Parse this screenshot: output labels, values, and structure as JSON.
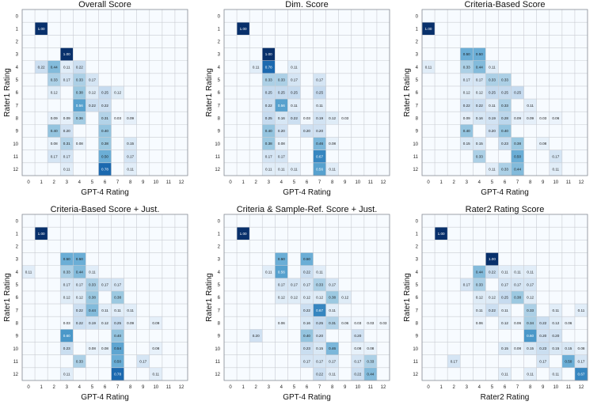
{
  "chart_data": [
    {
      "type": "heatmap",
      "title": "Overall Score",
      "xlabel": "GPT-4 Rating",
      "ylabel": "Rater1 Rating",
      "x_ticks": [
        0,
        1,
        2,
        3,
        4,
        5,
        6,
        7,
        8,
        9,
        10,
        11,
        12
      ],
      "y_ticks": [
        0,
        1,
        2,
        3,
        4,
        5,
        6,
        7,
        8,
        9,
        10,
        11,
        12
      ],
      "cells": [
        [
          1,
          1,
          1.0
        ],
        [
          3,
          3,
          1.0
        ],
        [
          4,
          1,
          0.22
        ],
        [
          4,
          2,
          0.44
        ],
        [
          4,
          3,
          0.11
        ],
        [
          4,
          4,
          0.22
        ],
        [
          5,
          2,
          0.33
        ],
        [
          5,
          3,
          0.17
        ],
        [
          5,
          4,
          0.33
        ],
        [
          5,
          5,
          0.17
        ],
        [
          6,
          2,
          0.12
        ],
        [
          6,
          4,
          0.38
        ],
        [
          6,
          5,
          0.12
        ],
        [
          6,
          6,
          0.25
        ],
        [
          6,
          7,
          0.12
        ],
        [
          7,
          4,
          0.56
        ],
        [
          7,
          5,
          0.22
        ],
        [
          7,
          6,
          0.22
        ],
        [
          8,
          2,
          0.09
        ],
        [
          8,
          3,
          0.09
        ],
        [
          8,
          4,
          0.36
        ],
        [
          8,
          6,
          0.31
        ],
        [
          8,
          7,
          0.03
        ],
        [
          8,
          8,
          0.09
        ],
        [
          9,
          2,
          0.4
        ],
        [
          9,
          3,
          0.2
        ],
        [
          9,
          6,
          0.4
        ],
        [
          10,
          2,
          0.08
        ],
        [
          10,
          3,
          0.31
        ],
        [
          10,
          4,
          0.08
        ],
        [
          10,
          6,
          0.38
        ],
        [
          10,
          8,
          0.15
        ],
        [
          11,
          2,
          0.17
        ],
        [
          11,
          3,
          0.17
        ],
        [
          11,
          6,
          0.5
        ],
        [
          11,
          8,
          0.17
        ],
        [
          12,
          3,
          0.11
        ],
        [
          12,
          6,
          0.78
        ],
        [
          12,
          8,
          0.11
        ]
      ]
    },
    {
      "type": "heatmap",
      "title": "Dim. Score",
      "xlabel": "GPT-4 Rating",
      "ylabel": "Rater1 Rating",
      "x_ticks": [
        0,
        1,
        2,
        3,
        4,
        5,
        6,
        7,
        8,
        9,
        10,
        11,
        12
      ],
      "y_ticks": [
        0,
        1,
        2,
        3,
        4,
        5,
        6,
        7,
        8,
        9,
        10,
        11,
        12
      ],
      "cells": [
        [
          1,
          1,
          1.0
        ],
        [
          3,
          3,
          1.0
        ],
        [
          4,
          2,
          0.11
        ],
        [
          4,
          3,
          0.78
        ],
        [
          4,
          5,
          0.11
        ],
        [
          5,
          3,
          0.33
        ],
        [
          5,
          4,
          0.33
        ],
        [
          5,
          5,
          0.17
        ],
        [
          5,
          7,
          0.17
        ],
        [
          6,
          3,
          0.25
        ],
        [
          6,
          4,
          0.25
        ],
        [
          6,
          5,
          0.25
        ],
        [
          6,
          7,
          0.25
        ],
        [
          7,
          3,
          0.22
        ],
        [
          7,
          4,
          0.56
        ],
        [
          7,
          5,
          0.11
        ],
        [
          7,
          7,
          0.11
        ],
        [
          8,
          3,
          0.25
        ],
        [
          8,
          4,
          0.16
        ],
        [
          8,
          5,
          0.22
        ],
        [
          8,
          6,
          0.03
        ],
        [
          8,
          7,
          0.19
        ],
        [
          8,
          8,
          0.12
        ],
        [
          8,
          9,
          0.03
        ],
        [
          9,
          3,
          0.4
        ],
        [
          9,
          4,
          0.2
        ],
        [
          9,
          6,
          0.2
        ],
        [
          9,
          7,
          0.2
        ],
        [
          10,
          3,
          0.38
        ],
        [
          10,
          4,
          0.08
        ],
        [
          10,
          7,
          0.46
        ],
        [
          10,
          8,
          0.08
        ],
        [
          11,
          3,
          0.17
        ],
        [
          11,
          4,
          0.17
        ],
        [
          11,
          7,
          0.67
        ],
        [
          12,
          3,
          0.11
        ],
        [
          12,
          4,
          0.11
        ],
        [
          12,
          5,
          0.11
        ],
        [
          12,
          7,
          0.56
        ],
        [
          12,
          8,
          0.11
        ]
      ]
    },
    {
      "type": "heatmap",
      "title": "Criteria-Based Score",
      "xlabel": "GPT-4 Rating",
      "ylabel": "Rater1 Rating",
      "x_ticks": [
        0,
        1,
        2,
        3,
        4,
        5,
        6,
        7,
        8,
        9,
        10,
        11,
        12
      ],
      "y_ticks": [
        0,
        1,
        2,
        3,
        4,
        5,
        6,
        7,
        8,
        9,
        10,
        11,
        12
      ],
      "cells": [
        [
          1,
          0,
          1.0
        ],
        [
          3,
          3,
          0.5
        ],
        [
          3,
          4,
          0.5
        ],
        [
          4,
          0,
          0.11
        ],
        [
          4,
          3,
          0.33
        ],
        [
          4,
          4,
          0.44
        ],
        [
          4,
          5,
          0.11
        ],
        [
          5,
          3,
          0.17
        ],
        [
          5,
          4,
          0.17
        ],
        [
          5,
          5,
          0.33
        ],
        [
          5,
          6,
          0.33
        ],
        [
          6,
          3,
          0.12
        ],
        [
          6,
          4,
          0.12
        ],
        [
          6,
          5,
          0.25
        ],
        [
          6,
          6,
          0.25
        ],
        [
          6,
          7,
          0.25
        ],
        [
          7,
          3,
          0.22
        ],
        [
          7,
          4,
          0.22
        ],
        [
          7,
          5,
          0.11
        ],
        [
          7,
          6,
          0.33
        ],
        [
          7,
          8,
          0.11
        ],
        [
          8,
          3,
          0.09
        ],
        [
          8,
          4,
          0.16
        ],
        [
          8,
          5,
          0.19
        ],
        [
          8,
          6,
          0.28
        ],
        [
          8,
          7,
          0.09
        ],
        [
          8,
          8,
          0.09
        ],
        [
          8,
          9,
          0.03
        ],
        [
          8,
          10,
          0.06
        ],
        [
          9,
          3,
          0.4
        ],
        [
          9,
          5,
          0.2
        ],
        [
          9,
          6,
          0.4
        ],
        [
          10,
          3,
          0.15
        ],
        [
          10,
          4,
          0.15
        ],
        [
          10,
          6,
          0.23
        ],
        [
          10,
          7,
          0.38
        ],
        [
          10,
          9,
          0.08
        ],
        [
          11,
          4,
          0.33
        ],
        [
          11,
          7,
          0.5
        ],
        [
          11,
          10,
          0.17
        ],
        [
          12,
          5,
          0.11
        ],
        [
          12,
          6,
          0.33
        ],
        [
          12,
          7,
          0.44
        ],
        [
          12,
          10,
          0.11
        ]
      ]
    },
    {
      "type": "heatmap",
      "title": "Criteria-Based Score + Just.",
      "xlabel": "GPT-4 Rating",
      "ylabel": "Rater1 Rating",
      "x_ticks": [
        0,
        1,
        2,
        3,
        4,
        5,
        6,
        7,
        8,
        9,
        10,
        11,
        12
      ],
      "y_ticks": [
        0,
        1,
        2,
        3,
        4,
        5,
        6,
        7,
        8,
        9,
        10,
        11,
        12
      ],
      "cells": [
        [
          1,
          1,
          1.0
        ],
        [
          3,
          3,
          0.5
        ],
        [
          3,
          4,
          0.5
        ],
        [
          4,
          0,
          0.11
        ],
        [
          4,
          3,
          0.33
        ],
        [
          4,
          4,
          0.44
        ],
        [
          4,
          5,
          0.11
        ],
        [
          5,
          3,
          0.17
        ],
        [
          5,
          4,
          0.17
        ],
        [
          5,
          5,
          0.33
        ],
        [
          5,
          6,
          0.17
        ],
        [
          5,
          7,
          0.17
        ],
        [
          6,
          3,
          0.12
        ],
        [
          6,
          4,
          0.12
        ],
        [
          6,
          5,
          0.38
        ],
        [
          6,
          7,
          0.38
        ],
        [
          7,
          4,
          0.22
        ],
        [
          7,
          5,
          0.44
        ],
        [
          7,
          6,
          0.11
        ],
        [
          7,
          7,
          0.11
        ],
        [
          7,
          8,
          0.11
        ],
        [
          8,
          3,
          0.03
        ],
        [
          8,
          4,
          0.22
        ],
        [
          8,
          5,
          0.19
        ],
        [
          8,
          6,
          0.12
        ],
        [
          8,
          7,
          0.25
        ],
        [
          8,
          8,
          0.09
        ],
        [
          8,
          10,
          0.09
        ],
        [
          9,
          3,
          0.6
        ],
        [
          9,
          7,
          0.4
        ],
        [
          10,
          3,
          0.23
        ],
        [
          10,
          5,
          0.08
        ],
        [
          10,
          6,
          0.08
        ],
        [
          10,
          7,
          0.54
        ],
        [
          10,
          10,
          0.08
        ],
        [
          11,
          4,
          0.33
        ],
        [
          11,
          7,
          0.5
        ],
        [
          11,
          9,
          0.17
        ],
        [
          12,
          3,
          0.11
        ],
        [
          12,
          7,
          0.78
        ],
        [
          12,
          10,
          0.11
        ]
      ]
    },
    {
      "type": "heatmap",
      "title": "Criteria & Sample-Ref. Score + Just.",
      "xlabel": "GPT-4 Rating",
      "ylabel": "Rater1 Rating",
      "x_ticks": [
        0,
        1,
        2,
        3,
        4,
        5,
        6,
        7,
        8,
        9,
        10,
        11,
        12
      ],
      "y_ticks": [
        0,
        1,
        2,
        3,
        4,
        5,
        6,
        7,
        8,
        9,
        10,
        11,
        12
      ],
      "cells": [
        [
          1,
          1,
          1.0
        ],
        [
          3,
          4,
          0.5
        ],
        [
          3,
          6,
          0.5
        ],
        [
          4,
          3,
          0.11
        ],
        [
          4,
          4,
          0.56
        ],
        [
          4,
          6,
          0.22
        ],
        [
          4,
          7,
          0.11
        ],
        [
          5,
          4,
          0.17
        ],
        [
          5,
          5,
          0.17
        ],
        [
          5,
          6,
          0.17
        ],
        [
          5,
          7,
          0.33
        ],
        [
          5,
          8,
          0.17
        ],
        [
          6,
          4,
          0.12
        ],
        [
          6,
          5,
          0.12
        ],
        [
          6,
          6,
          0.12
        ],
        [
          6,
          7,
          0.12
        ],
        [
          6,
          8,
          0.38
        ],
        [
          6,
          9,
          0.12
        ],
        [
          7,
          6,
          0.22
        ],
        [
          7,
          7,
          0.67
        ],
        [
          7,
          8,
          0.11
        ],
        [
          8,
          4,
          0.06
        ],
        [
          8,
          6,
          0.16
        ],
        [
          8,
          7,
          0.25
        ],
        [
          8,
          8,
          0.31
        ],
        [
          8,
          9,
          0.06
        ],
        [
          8,
          10,
          0.03
        ],
        [
          8,
          11,
          0.03
        ],
        [
          8,
          12,
          0.03
        ],
        [
          9,
          2,
          0.2
        ],
        [
          9,
          6,
          0.4
        ],
        [
          9,
          7,
          0.2
        ],
        [
          9,
          10,
          0.2
        ],
        [
          10,
          6,
          0.23
        ],
        [
          10,
          7,
          0.15
        ],
        [
          10,
          8,
          0.46
        ],
        [
          10,
          10,
          0.08
        ],
        [
          10,
          11,
          0.08
        ],
        [
          11,
          6,
          0.17
        ],
        [
          11,
          7,
          0.17
        ],
        [
          11,
          8,
          0.17
        ],
        [
          11,
          10,
          0.17
        ],
        [
          11,
          11,
          0.33
        ],
        [
          12,
          7,
          0.22
        ],
        [
          12,
          8,
          0.11
        ],
        [
          12,
          10,
          0.22
        ],
        [
          12,
          11,
          0.44
        ]
      ]
    },
    {
      "type": "heatmap",
      "title": "Rater2 Rating Score",
      "xlabel": "Rater2 Rating",
      "ylabel": "Rater1 Rating",
      "x_ticks": [
        0,
        1,
        2,
        3,
        4,
        5,
        6,
        7,
        8,
        9,
        10,
        11,
        12
      ],
      "y_ticks": [
        0,
        1,
        2,
        3,
        4,
        5,
        6,
        7,
        8,
        9,
        10,
        11,
        12
      ],
      "cells": [
        [
          1,
          1,
          1.0
        ],
        [
          3,
          5,
          1.0
        ],
        [
          4,
          4,
          0.44
        ],
        [
          4,
          5,
          0.22
        ],
        [
          4,
          6,
          0.11
        ],
        [
          4,
          7,
          0.11
        ],
        [
          4,
          8,
          0.11
        ],
        [
          5,
          3,
          0.17
        ],
        [
          5,
          4,
          0.33
        ],
        [
          5,
          6,
          0.17
        ],
        [
          5,
          7,
          0.17
        ],
        [
          5,
          8,
          0.17
        ],
        [
          6,
          4,
          0.12
        ],
        [
          6,
          5,
          0.12
        ],
        [
          6,
          6,
          0.25
        ],
        [
          6,
          7,
          0.38
        ],
        [
          6,
          8,
          0.12
        ],
        [
          7,
          4,
          0.11
        ],
        [
          7,
          5,
          0.22
        ],
        [
          7,
          6,
          0.11
        ],
        [
          7,
          8,
          0.33
        ],
        [
          7,
          10,
          0.11
        ],
        [
          7,
          12,
          0.11
        ],
        [
          8,
          4,
          0.06
        ],
        [
          8,
          6,
          0.12
        ],
        [
          8,
          7,
          0.06
        ],
        [
          8,
          8,
          0.34
        ],
        [
          8,
          9,
          0.22
        ],
        [
          8,
          10,
          0.12
        ],
        [
          8,
          11,
          0.06
        ],
        [
          9,
          8,
          0.6
        ],
        [
          9,
          9,
          0.2
        ],
        [
          9,
          10,
          0.2
        ],
        [
          10,
          6,
          0.15
        ],
        [
          10,
          7,
          0.08
        ],
        [
          10,
          8,
          0.15
        ],
        [
          10,
          9,
          0.23
        ],
        [
          10,
          10,
          0.15
        ],
        [
          10,
          11,
          0.15
        ],
        [
          10,
          12,
          0.08
        ],
        [
          11,
          2,
          0.17
        ],
        [
          11,
          9,
          0.17
        ],
        [
          11,
          11,
          0.5
        ],
        [
          11,
          12,
          0.17
        ],
        [
          12,
          6,
          0.11
        ],
        [
          12,
          8,
          0.11
        ],
        [
          12,
          10,
          0.11
        ],
        [
          12,
          12,
          0.67
        ]
      ]
    }
  ]
}
